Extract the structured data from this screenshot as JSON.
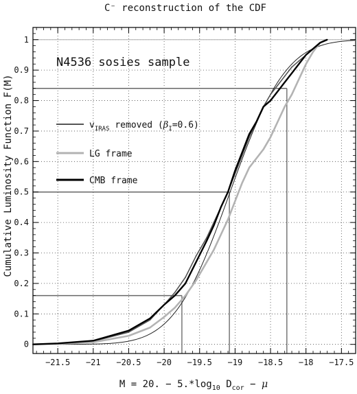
{
  "chart_data": {
    "type": "line",
    "title": "C⁻ reconstruction of the CDF",
    "annotation": "N4536 sosies sample",
    "xlabel": "M = 20. − 5.*log10 Dcor − μ",
    "ylabel": "Cumulative Luminosity Function  F(M)",
    "xlim": [
      -21.85,
      -17.3
    ],
    "ylim": [
      -0.03,
      1.04
    ],
    "x_ticks": [
      -21.5,
      -21,
      -20.5,
      -20,
      -19.5,
      -19,
      -18.5,
      -18,
      -17.5
    ],
    "x_tick_labels": [
      "−21.5",
      "−21",
      "−20.5",
      "−20",
      "−19.5",
      "−19",
      "−18.5",
      "−18",
      "−17.5"
    ],
    "y_ticks": [
      0,
      0.1,
      0.2,
      0.3,
      0.4,
      0.5,
      0.6,
      0.7,
      0.8,
      0.9,
      1
    ],
    "y_tick_labels": [
      "0",
      "0.1",
      "0.2",
      "0.3",
      "0.4",
      "0.5",
      "0.6",
      "0.7",
      "0.8",
      "0.9",
      "1"
    ],
    "grid": true,
    "legend": [
      {
        "label": "vIRAS removed (βI=0.6)",
        "color": "#555555"
      },
      {
        "label": "LG frame",
        "color": "#b3b3b3"
      },
      {
        "label": "CMB frame",
        "color": "#000000"
      }
    ],
    "reference_lines": [
      {
        "y": 0.16,
        "x": -19.75
      },
      {
        "y": 0.5,
        "x": -19.08
      },
      {
        "y": 0.84,
        "x": -18.27
      }
    ],
    "series": [
      {
        "name": "vIRAS removed (βI=0.6)",
        "color": "#555555",
        "x": [
          -21.85,
          -21.5,
          -21.0,
          -20.5,
          -20.2,
          -20.0,
          -19.85,
          -19.7,
          -19.55,
          -19.4,
          -19.3,
          -19.2,
          -19.1,
          -19.0,
          -18.9,
          -18.8,
          -18.7,
          -18.6,
          -18.5,
          -18.4,
          -18.3,
          -18.2,
          -18.1,
          -18.0,
          -17.9,
          -17.8,
          -17.7
        ],
        "y": [
          0.0,
          0.003,
          0.01,
          0.04,
          0.08,
          0.13,
          0.17,
          0.22,
          0.29,
          0.35,
          0.4,
          0.45,
          0.5,
          0.56,
          0.62,
          0.68,
          0.73,
          0.78,
          0.82,
          0.85,
          0.88,
          0.91,
          0.93,
          0.95,
          0.97,
          0.99,
          1.0
        ]
      },
      {
        "name": "LG frame",
        "color": "#b3b3b3",
        "x": [
          -21.85,
          -21.5,
          -21.0,
          -20.5,
          -20.2,
          -20.0,
          -19.85,
          -19.7,
          -19.55,
          -19.4,
          -19.3,
          -19.2,
          -19.1,
          -19.0,
          -18.9,
          -18.8,
          -18.7,
          -18.6,
          -18.5,
          -18.4,
          -18.3,
          -18.2,
          -18.1,
          -18.0,
          -17.9,
          -17.8,
          -17.7
        ],
        "y": [
          0.0,
          0.002,
          0.007,
          0.028,
          0.055,
          0.09,
          0.12,
          0.16,
          0.21,
          0.27,
          0.31,
          0.36,
          0.41,
          0.47,
          0.53,
          0.58,
          0.61,
          0.64,
          0.68,
          0.73,
          0.78,
          0.82,
          0.87,
          0.92,
          0.96,
          0.99,
          1.0
        ]
      },
      {
        "name": "CMB frame",
        "color": "#000000",
        "x": [
          -21.85,
          -21.5,
          -21.0,
          -20.5,
          -20.2,
          -20.0,
          -19.85,
          -19.7,
          -19.55,
          -19.4,
          -19.3,
          -19.2,
          -19.1,
          -19.0,
          -18.9,
          -18.8,
          -18.7,
          -18.6,
          -18.5,
          -18.4,
          -18.3,
          -18.2,
          -18.1,
          -18.0,
          -17.9,
          -17.8,
          -17.7
        ],
        "y": [
          0.0,
          0.003,
          0.012,
          0.045,
          0.085,
          0.13,
          0.16,
          0.2,
          0.27,
          0.34,
          0.39,
          0.45,
          0.5,
          0.57,
          0.63,
          0.69,
          0.73,
          0.78,
          0.8,
          0.83,
          0.86,
          0.89,
          0.92,
          0.95,
          0.97,
          0.99,
          1.0
        ]
      }
    ],
    "fit_curve": {
      "type": "gaussian_cdf",
      "mean": -19.07,
      "sigma": 0.62,
      "color": "#222222"
    }
  }
}
